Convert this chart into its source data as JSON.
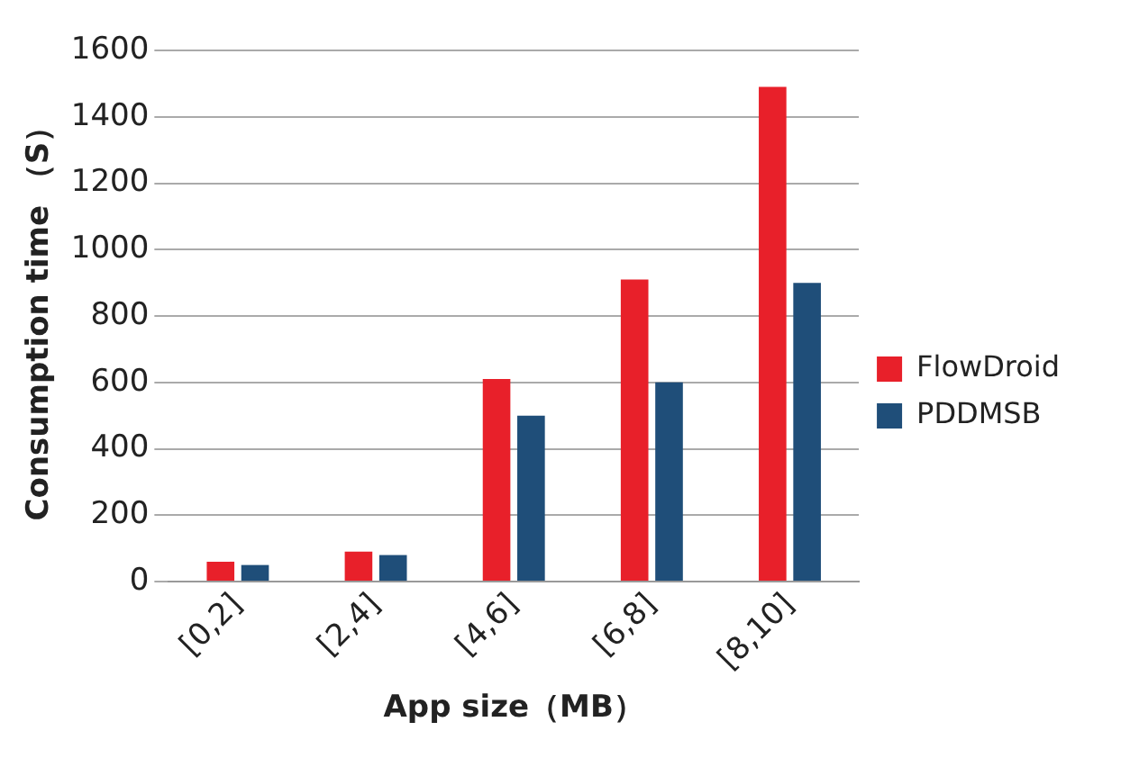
{
  "chart_data": {
    "type": "bar",
    "xlabel": "App size（MB）",
    "ylabel": "Consumption time （S）",
    "categories": [
      "[0,2]",
      "[2,4]",
      "[4,6]",
      "[6,8]",
      "[8,10]"
    ],
    "series": [
      {
        "name": "FlowDroid",
        "color": "#e8202a",
        "values": [
          60,
          90,
          610,
          910,
          1490
        ]
      },
      {
        "name": "PDDMSB",
        "color": "#1f4e79",
        "values": [
          50,
          80,
          500,
          600,
          900
        ]
      }
    ],
    "ylim": [
      0,
      1600
    ],
    "yticks": [
      0,
      200,
      400,
      600,
      800,
      1000,
      1200,
      1400,
      1600
    ],
    "grid": "y",
    "legend": "right"
  }
}
